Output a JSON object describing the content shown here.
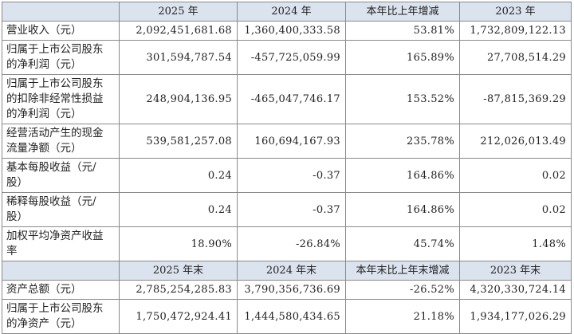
{
  "sections": [
    {
      "header": [
        "2025 年",
        "2024 年",
        "本年比上年增减",
        "2023 年"
      ],
      "rows": [
        [
          "营业收入（元）",
          "2,092,451,681.68",
          "1,360,400,333.58",
          "53.81%",
          "1,732,809,122.13"
        ],
        [
          "归属于上市公司股东的净利润（元）",
          "301,594,787.54",
          "-457,725,059.99",
          "165.89%",
          "27,708,514.29"
        ],
        [
          "归属于上市公司股东的扣除非经常性损益的净利润（元）",
          "248,904,136.95",
          "-465,047,746.17",
          "153.52%",
          "-87,815,369.29"
        ],
        [
          "经营活动产生的现金流量净额（元）",
          "539,581,257.08",
          "160,694,167.93",
          "235.78%",
          "212,026,013.49"
        ],
        [
          "基本每股收益（元/股）",
          "0.24",
          "-0.37",
          "164.86%",
          "0.02"
        ],
        [
          "稀释每股收益（元/股）",
          "0.24",
          "-0.37",
          "164.86%",
          "0.02"
        ],
        [
          "加权平均净资产收益率",
          "18.90%",
          "-26.84%",
          "45.74%",
          "1.48%"
        ]
      ]
    },
    {
      "header": [
        "2025 年末",
        "2024 年末",
        "本年末比上年末增减",
        "2023 年末"
      ],
      "rows": [
        [
          "资产总额（元）",
          "2,785,254,285.83",
          "3,790,356,736.69",
          "-26.52%",
          "4,320,330,724.14"
        ],
        [
          "归属于上市公司股东的净资产（元）",
          "1,750,472,924.41",
          "1,444,580,434.65",
          "21.18%",
          "1,934,177,026.29"
        ]
      ]
    }
  ]
}
